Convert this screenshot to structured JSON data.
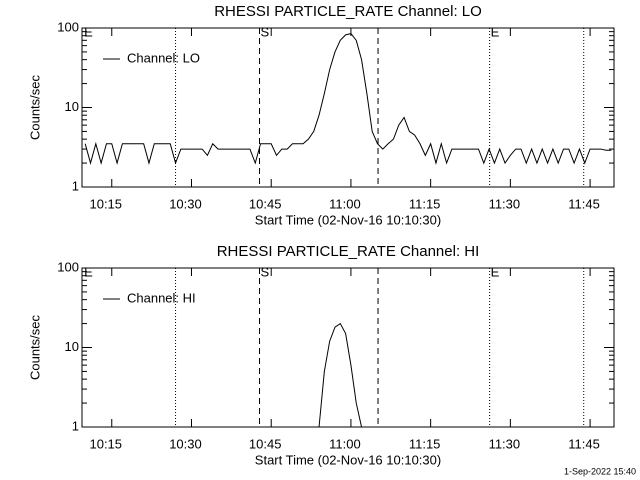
{
  "chart_data": [
    {
      "type": "line",
      "title": "RHESSI PARTICLE_RATE Channel: LO",
      "xlabel": "Start Time (02-Nov-16 10:10:30)",
      "ylabel": "Counts/sec",
      "log_y": true,
      "legend": "upper left",
      "xlim": [
        9.4,
        109.5
      ],
      "ylim": [
        1,
        100
      ],
      "xticks": [
        {
          "value": 15,
          "label": "10:15"
        },
        {
          "value": 30,
          "label": "10:30"
        },
        {
          "value": 45,
          "label": "10:45"
        },
        {
          "value": 60,
          "label": "11:00"
        },
        {
          "value": 75,
          "label": "11:15"
        },
        {
          "value": 90,
          "label": "11:30"
        },
        {
          "value": 105,
          "label": "11:45"
        }
      ],
      "yticks": [
        1,
        10,
        100
      ],
      "vlines": [
        {
          "x": 9.6,
          "style": "none",
          "label": "E"
        },
        {
          "x": 27.0,
          "style": "dotted"
        },
        {
          "x": 42.8,
          "style": "dashed",
          "label": "S"
        },
        {
          "x": 65.1,
          "style": "dashed"
        },
        {
          "x": 86.1,
          "style": "dotted",
          "label": "E"
        },
        {
          "x": 103.8,
          "style": "dotted"
        }
      ],
      "x": [
        10,
        11,
        12,
        13,
        14,
        15,
        16,
        17,
        18,
        19,
        20,
        21,
        22,
        23,
        24,
        25,
        26,
        27,
        28,
        29,
        30,
        31,
        32,
        33,
        34,
        35,
        36,
        37,
        38,
        39,
        40,
        41,
        42,
        43,
        44,
        45,
        46,
        47,
        48,
        49,
        50,
        51,
        52,
        53,
        54,
        55,
        56,
        57,
        58,
        59,
        60,
        61,
        62,
        63,
        64,
        65,
        66,
        67,
        68,
        69,
        70,
        71,
        72,
        73,
        74,
        75,
        76,
        77,
        78,
        79,
        80,
        81,
        82,
        83,
        84,
        85,
        86,
        87,
        88,
        89,
        90,
        91,
        92,
        93,
        94,
        95,
        96,
        97,
        98,
        99,
        100,
        101,
        102,
        103,
        104,
        105,
        106,
        107,
        108,
        109
      ],
      "series": [
        {
          "name": "Channel: LO",
          "color": "#000000",
          "values": [
            3.5,
            2,
            3.5,
            2,
            3.5,
            3.5,
            2,
            3.5,
            3.5,
            3.5,
            3.5,
            3.5,
            2,
            3.5,
            3.5,
            3.5,
            3.5,
            2,
            3,
            3,
            3,
            3,
            3,
            2.5,
            3.5,
            3,
            3,
            3,
            3,
            3,
            3,
            3,
            2,
            3.5,
            3.5,
            3.5,
            2.5,
            3,
            3,
            3.5,
            3.5,
            3.5,
            4,
            5,
            8,
            15,
            30,
            50,
            70,
            82,
            85,
            70,
            40,
            15,
            5,
            3.5,
            3,
            3.5,
            4,
            6,
            7.5,
            5,
            4.5,
            3.5,
            2.5,
            3.5,
            2,
            3.5,
            2,
            3,
            3,
            3,
            3,
            3,
            3,
            2,
            3,
            2,
            3,
            2,
            2.5,
            3,
            3,
            2,
            3,
            2,
            3,
            2,
            3,
            2,
            3,
            3,
            2,
            3,
            2,
            3,
            3,
            3,
            2.9,
            2.9
          ]
        }
      ]
    },
    {
      "type": "line",
      "title": "RHESSI PARTICLE_RATE Channel: HI",
      "xlabel": "Start Time (02-Nov-16 10:10:30)",
      "ylabel": "Counts/sec",
      "log_y": true,
      "legend": "upper left",
      "xlim": [
        9.4,
        109.5
      ],
      "ylim": [
        1,
        100
      ],
      "xticks": [
        {
          "value": 15,
          "label": "10:15"
        },
        {
          "value": 30,
          "label": "10:30"
        },
        {
          "value": 45,
          "label": "10:45"
        },
        {
          "value": 60,
          "label": "11:00"
        },
        {
          "value": 75,
          "label": "11:15"
        },
        {
          "value": 90,
          "label": "11:30"
        },
        {
          "value": 105,
          "label": "11:45"
        }
      ],
      "yticks": [
        1,
        10,
        100
      ],
      "vlines": [
        {
          "x": 9.6,
          "style": "none",
          "label": "E"
        },
        {
          "x": 27.0,
          "style": "dotted"
        },
        {
          "x": 42.8,
          "style": "dashed",
          "label": "S"
        },
        {
          "x": 65.1,
          "style": "dashed"
        },
        {
          "x": 86.1,
          "style": "dotted",
          "label": "E"
        },
        {
          "x": 103.8,
          "style": "dotted"
        }
      ],
      "x": [
        54,
        55,
        56,
        57,
        58,
        59,
        60,
        61,
        62
      ],
      "series": [
        {
          "name": "Channel: HI",
          "color": "#000000",
          "values": [
            1,
            5,
            12,
            18,
            20,
            15,
            6,
            2,
            1
          ]
        }
      ]
    }
  ],
  "timestamp": "1-Sep-2022 15:40"
}
